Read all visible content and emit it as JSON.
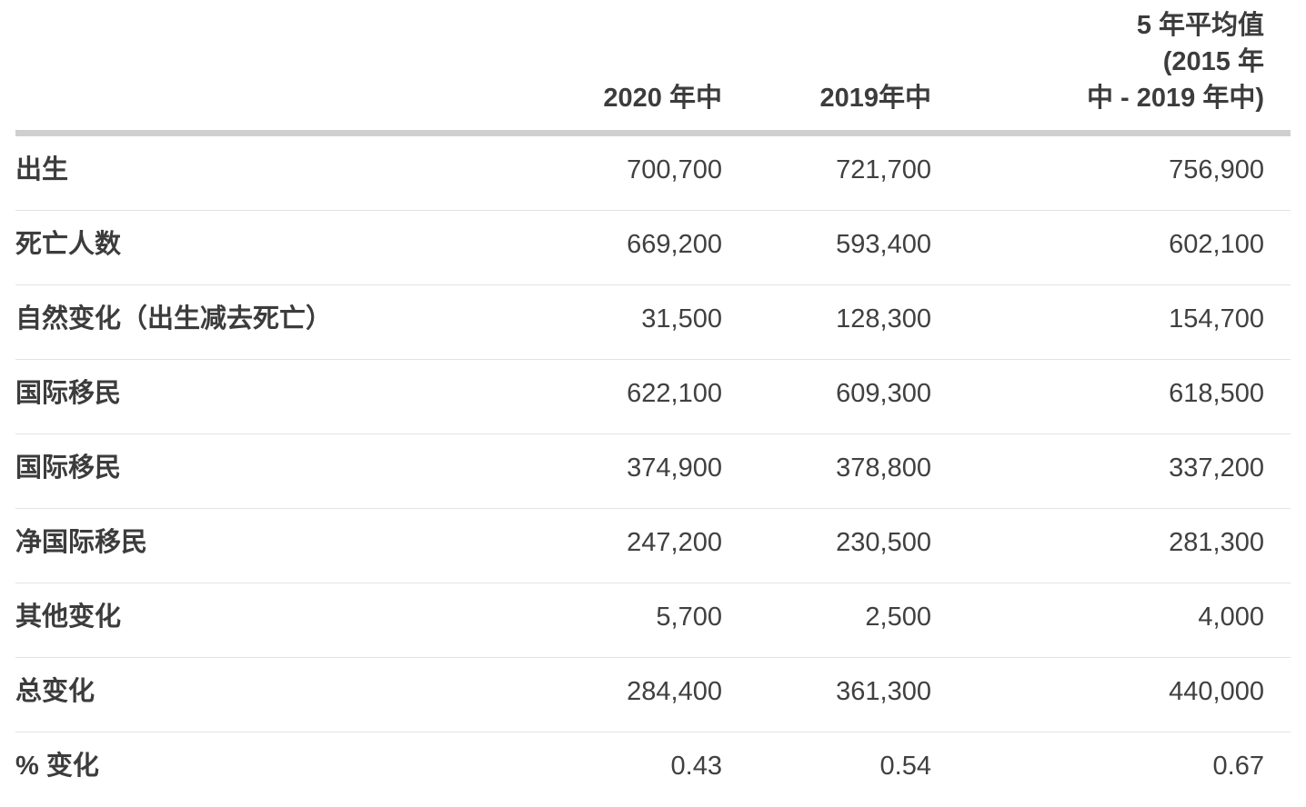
{
  "table": {
    "columns": [
      {
        "label": ""
      },
      {
        "label": "2020 年中"
      },
      {
        "label": "2019年中"
      },
      {
        "label_lines": [
          "5 年平均值",
          "(2015 年",
          "中 - 2019 年中)"
        ]
      }
    ],
    "rows": [
      {
        "label": "出生",
        "values": [
          "700,700",
          "721,700",
          "756,900"
        ]
      },
      {
        "label": "死亡人数",
        "values": [
          "669,200",
          "593,400",
          "602,100"
        ]
      },
      {
        "label": "自然变化（出生减去死亡）",
        "values": [
          "31,500",
          "128,300",
          "154,700"
        ]
      },
      {
        "label": "国际移民",
        "values": [
          "622,100",
          "609,300",
          "618,500"
        ]
      },
      {
        "label": "国际移民",
        "values": [
          "374,900",
          "378,800",
          "337,200"
        ]
      },
      {
        "label": "净国际移民",
        "values": [
          "247,200",
          "230,500",
          "281,300"
        ]
      },
      {
        "label": "其他变化",
        "values": [
          "5,700",
          "2,500",
          "4,000"
        ]
      },
      {
        "label": "总变化",
        "values": [
          "284,400",
          "361,300",
          "440,000"
        ]
      },
      {
        "label": "% 变化",
        "values": [
          "0.43",
          "0.54",
          "0.67"
        ]
      }
    ]
  },
  "colors": {
    "text": "#3c3c3c",
    "header_border": "#cfcfcf",
    "row_border": "#e3e3e3",
    "background": "#ffffff"
  },
  "chart_data": {
    "type": "table",
    "columns": [
      "",
      "2020 年中",
      "2019年中",
      "5 年平均值 (2015 年中 - 2019 年中)"
    ],
    "rows": [
      [
        "出生",
        700700,
        721700,
        756900
      ],
      [
        "死亡人数",
        669200,
        593400,
        602100
      ],
      [
        "自然变化（出生减去死亡）",
        31500,
        128300,
        154700
      ],
      [
        "国际移民",
        622100,
        609300,
        618500
      ],
      [
        "国际移民",
        374900,
        378800,
        337200
      ],
      [
        "净国际移民",
        247200,
        230500,
        281300
      ],
      [
        "其他变化",
        5700,
        2500,
        4000
      ],
      [
        "总变化",
        284400,
        361300,
        440000
      ],
      [
        "% 变化",
        0.43,
        0.54,
        0.67
      ]
    ]
  }
}
